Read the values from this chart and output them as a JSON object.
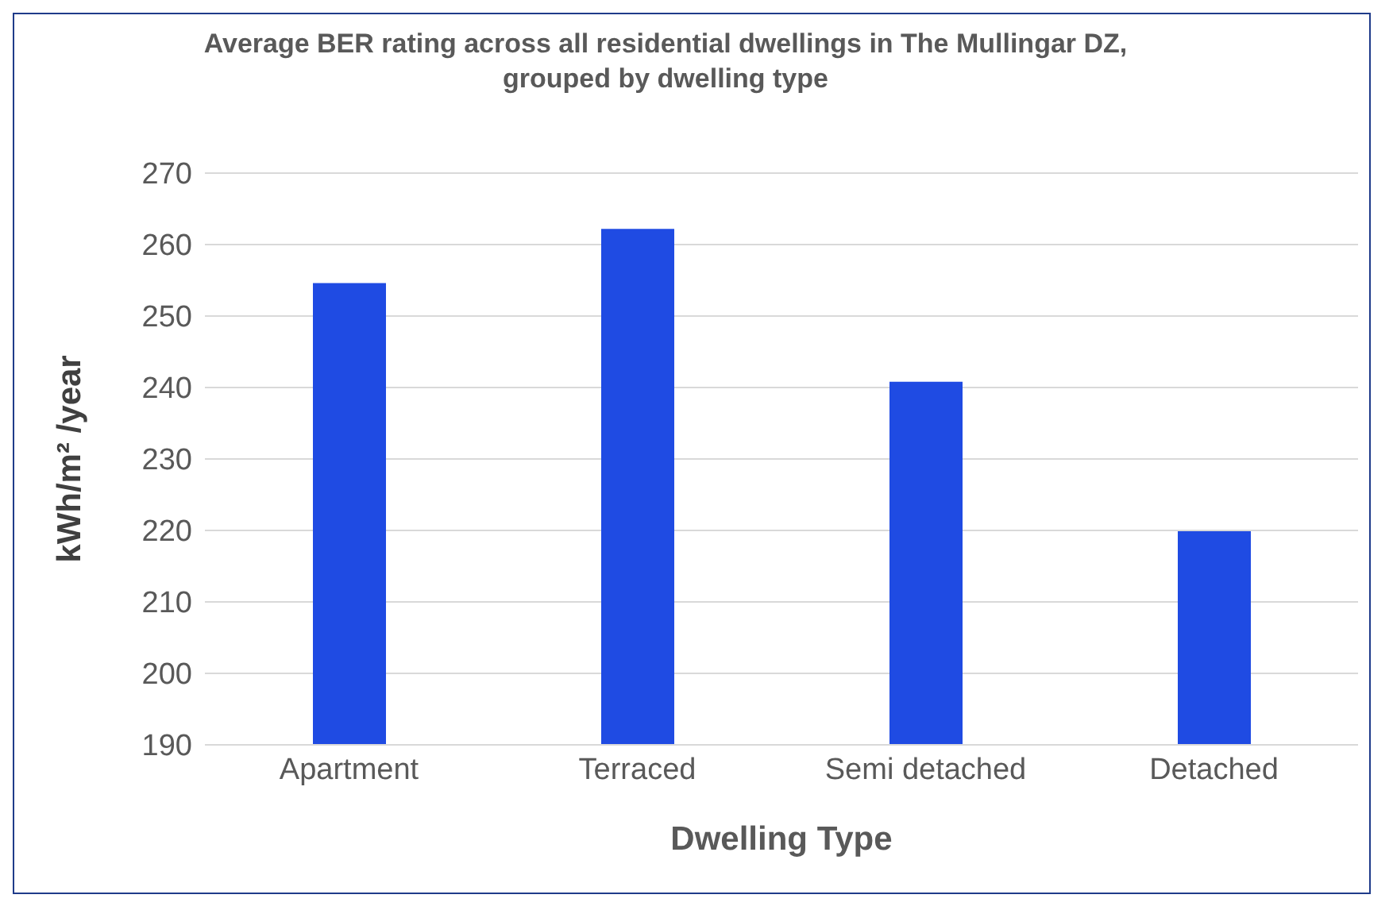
{
  "chart_data": {
    "type": "bar",
    "title": "Average BER rating across all residential dwellings in The Mullingar DZ, grouped by dwelling type",
    "xlabel": "Dwelling Type",
    "ylabel": "kWh/m² /year",
    "categories": [
      "Apartment",
      "Terraced",
      "Semi detached",
      "Detached"
    ],
    "values": [
      254.6,
      262.2,
      240.8,
      219.9
    ],
    "color": "#1f4be3",
    "ylim": [
      190,
      270
    ],
    "yticks": [
      190,
      200,
      210,
      220,
      230,
      240,
      250,
      260,
      270
    ],
    "grid": "y",
    "legend": false
  }
}
